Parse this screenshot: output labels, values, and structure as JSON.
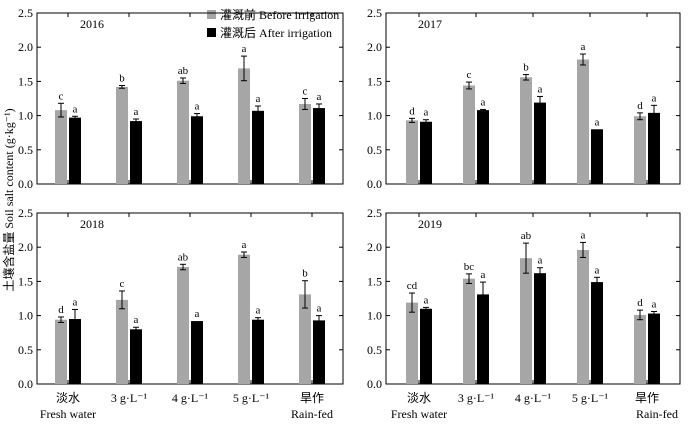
{
  "figure": {
    "ylabel": "土壤含盐量 Soil salt content (g·kg⁻¹)",
    "legend": [
      {
        "label": "灌溉前 Before irrigation",
        "color": "#a6a6a6"
      },
      {
        "label": "灌溉后 After irrigation",
        "color": "#000000"
      }
    ],
    "categories_cn": [
      "淡水",
      "",
      "",
      "",
      "旱作"
    ],
    "categories_en": [
      "Fresh water",
      "3 g·L⁻¹",
      "4 g·L⁻¹",
      "5 g·L⁻¹",
      "Rain-fed"
    ],
    "yticks": [
      "0.0",
      "0.5",
      "1.0",
      "1.5",
      "2.0",
      "2.5"
    ]
  },
  "chart_data": [
    {
      "type": "bar",
      "title": "2016",
      "categories": [
        "Fresh water",
        "3 g·L⁻¹",
        "4 g·L⁻¹",
        "5 g·L⁻¹",
        "Rain-fed"
      ],
      "ylim": [
        0,
        2.5
      ],
      "series": [
        {
          "name": "灌溉前 Before irrigation",
          "values": [
            1.08,
            1.42,
            1.51,
            1.69,
            1.17
          ],
          "errors": [
            0.1,
            0.02,
            0.04,
            0.18,
            0.08
          ],
          "letters": [
            "c",
            "b",
            "ab",
            "a",
            "c"
          ]
        },
        {
          "name": "灌溉后 After irrigation",
          "values": [
            0.97,
            0.92,
            0.99,
            1.07,
            1.11
          ],
          "errors": [
            0.02,
            0.03,
            0.04,
            0.07,
            0.06
          ],
          "letters": [
            "a",
            "a",
            "a",
            "a",
            "a"
          ]
        }
      ]
    },
    {
      "type": "bar",
      "title": "2017",
      "categories": [
        "Fresh water",
        "3 g·L⁻¹",
        "4 g·L⁻¹",
        "5 g·L⁻¹",
        "Rain-fed"
      ],
      "ylim": [
        0,
        2.5
      ],
      "series": [
        {
          "name": "灌溉前 Before irrigation",
          "values": [
            0.93,
            1.44,
            1.56,
            1.82,
            0.99
          ],
          "errors": [
            0.03,
            0.05,
            0.04,
            0.08,
            0.05
          ],
          "letters": [
            "d",
            "c",
            "b",
            "a",
            "d"
          ]
        },
        {
          "name": "灌溉后 After irrigation",
          "values": [
            0.91,
            1.08,
            1.19,
            0.8,
            1.04
          ],
          "errors": [
            0.03,
            0.01,
            0.09,
            0.0,
            0.11
          ],
          "letters": [
            "a",
            "a",
            "a",
            "a",
            "a"
          ]
        }
      ]
    },
    {
      "type": "bar",
      "title": "2018",
      "categories": [
        "Fresh water",
        "3 g·L⁻¹",
        "4 g·L⁻¹",
        "5 g·L⁻¹",
        "Rain-fed"
      ],
      "ylim": [
        0,
        2.5
      ],
      "series": [
        {
          "name": "灌溉前 Before irrigation",
          "values": [
            0.94,
            1.23,
            1.71,
            1.89,
            1.31
          ],
          "errors": [
            0.04,
            0.13,
            0.04,
            0.04,
            0.2
          ],
          "letters": [
            "d",
            "c",
            "ab",
            "a",
            "b"
          ]
        },
        {
          "name": "灌溉后 After irrigation",
          "values": [
            0.95,
            0.8,
            0.92,
            0.94,
            0.93
          ],
          "errors": [
            0.14,
            0.03,
            0.0,
            0.03,
            0.07
          ],
          "letters": [
            "a",
            "a",
            "a",
            "a",
            "a"
          ]
        }
      ]
    },
    {
      "type": "bar",
      "title": "2019",
      "categories": [
        "Fresh water",
        "3 g·L⁻¹",
        "4 g·L⁻¹",
        "5 g·L⁻¹",
        "Rain-fed"
      ],
      "ylim": [
        0,
        2.5
      ],
      "series": [
        {
          "name": "灌溉前 Before irrigation",
          "values": [
            1.19,
            1.54,
            1.84,
            1.96,
            1.01
          ],
          "errors": [
            0.14,
            0.07,
            0.22,
            0.11,
            0.07
          ],
          "letters": [
            "cd",
            "bc",
            "ab",
            "a",
            "d"
          ]
        },
        {
          "name": "灌溉后 After irrigation",
          "values": [
            1.1,
            1.31,
            1.62,
            1.49,
            1.03
          ],
          "errors": [
            0.02,
            0.18,
            0.08,
            0.07,
            0.03
          ],
          "letters": [
            "a",
            "a",
            "a",
            "a",
            "a"
          ]
        }
      ]
    }
  ]
}
